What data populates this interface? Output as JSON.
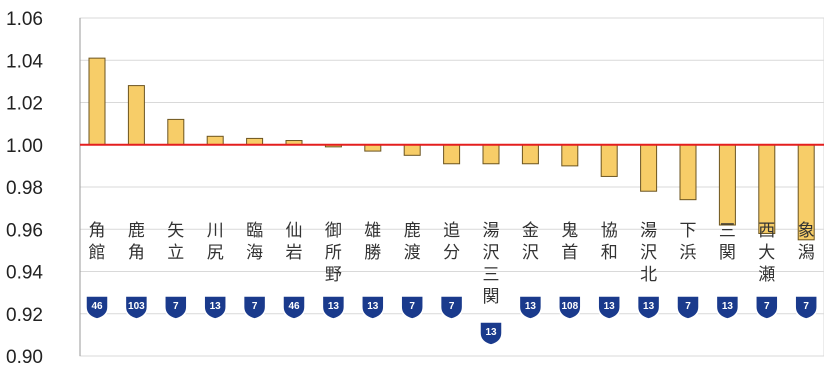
{
  "chart_data": {
    "type": "bar",
    "title": "",
    "xlabel": "",
    "ylabel": "",
    "ylim": [
      0.9,
      1.06
    ],
    "y_ticks": [
      "0.90",
      "0.92",
      "0.94",
      "0.96",
      "0.98",
      "1.00",
      "1.02",
      "1.04",
      "1.06"
    ],
    "baseline": 1.0,
    "grid": true,
    "categories": [
      "角館",
      "鹿角",
      "矢立",
      "川尻",
      "臨海",
      "仙岩",
      "御所野",
      "雄勝",
      "鹿渡",
      "追分",
      "湯沢三関",
      "金沢",
      "鬼首",
      "協和",
      "湯沢北",
      "下浜",
      "三関",
      "西大瀬",
      "象潟"
    ],
    "route_numbers": [
      "46",
      "103",
      "7",
      "13",
      "7",
      "46",
      "13",
      "13",
      "7",
      "7",
      "13",
      "13",
      "108",
      "13",
      "13",
      "7",
      "13",
      "7",
      "7"
    ],
    "series": [
      {
        "values": [
          1.041,
          1.028,
          1.012,
          1.004,
          1.003,
          1.002,
          0.999,
          0.997,
          0.995,
          0.991,
          0.991,
          0.991,
          0.99,
          0.985,
          0.978,
          0.974,
          0.962,
          0.958,
          0.955
        ]
      }
    ],
    "colors": {
      "bar_fill": "#f7cd68",
      "bar_stroke": "#6b5420",
      "baseline": "#e41e1e",
      "grid": "#d9d9d9",
      "shield": "#1a3a8c"
    }
  }
}
